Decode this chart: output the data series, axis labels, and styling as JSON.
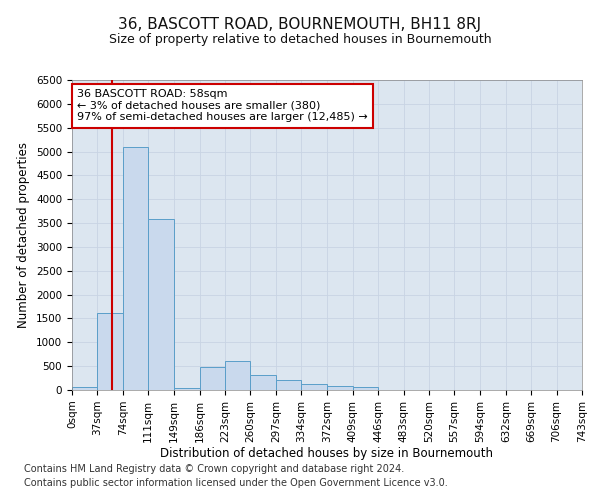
{
  "title": "36, BASCOTT ROAD, BOURNEMOUTH, BH11 8RJ",
  "subtitle": "Size of property relative to detached houses in Bournemouth",
  "xlabel": "Distribution of detached houses by size in Bournemouth",
  "ylabel": "Number of detached properties",
  "bar_edges": [
    0,
    37,
    74,
    111,
    149,
    186,
    223,
    260,
    297,
    334,
    372,
    409,
    446,
    483,
    520,
    557,
    594,
    632,
    669,
    706,
    743
  ],
  "bar_heights": [
    60,
    1620,
    5100,
    3580,
    50,
    480,
    600,
    320,
    220,
    130,
    90,
    60,
    0,
    0,
    0,
    0,
    0,
    0,
    0,
    0
  ],
  "bar_color": "#c9d9ed",
  "bar_edge_color": "#5a9ec9",
  "property_line_x": 58,
  "property_line_color": "#cc0000",
  "annotation_text": "36 BASCOTT ROAD: 58sqm\n← 3% of detached houses are smaller (380)\n97% of semi-detached houses are larger (12,485) →",
  "annotation_box_color": "#ffffff",
  "annotation_box_edge_color": "#cc0000",
  "ylim": [
    0,
    6500
  ],
  "yticks": [
    0,
    500,
    1000,
    1500,
    2000,
    2500,
    3000,
    3500,
    4000,
    4500,
    5000,
    5500,
    6000,
    6500
  ],
  "tick_labels": [
    "0sqm",
    "37sqm",
    "74sqm",
    "111sqm",
    "149sqm",
    "186sqm",
    "223sqm",
    "260sqm",
    "297sqm",
    "334sqm",
    "372sqm",
    "409sqm",
    "446sqm",
    "483sqm",
    "520sqm",
    "557sqm",
    "594sqm",
    "632sqm",
    "669sqm",
    "706sqm",
    "743sqm"
  ],
  "footer1": "Contains HM Land Registry data © Crown copyright and database right 2024.",
  "footer2": "Contains public sector information licensed under the Open Government Licence v3.0.",
  "grid_color": "#c8d4e3",
  "bg_color": "#dce6f0",
  "title_fontsize": 11,
  "subtitle_fontsize": 9,
  "axis_label_fontsize": 8.5,
  "tick_fontsize": 7.5,
  "footer_fontsize": 7
}
